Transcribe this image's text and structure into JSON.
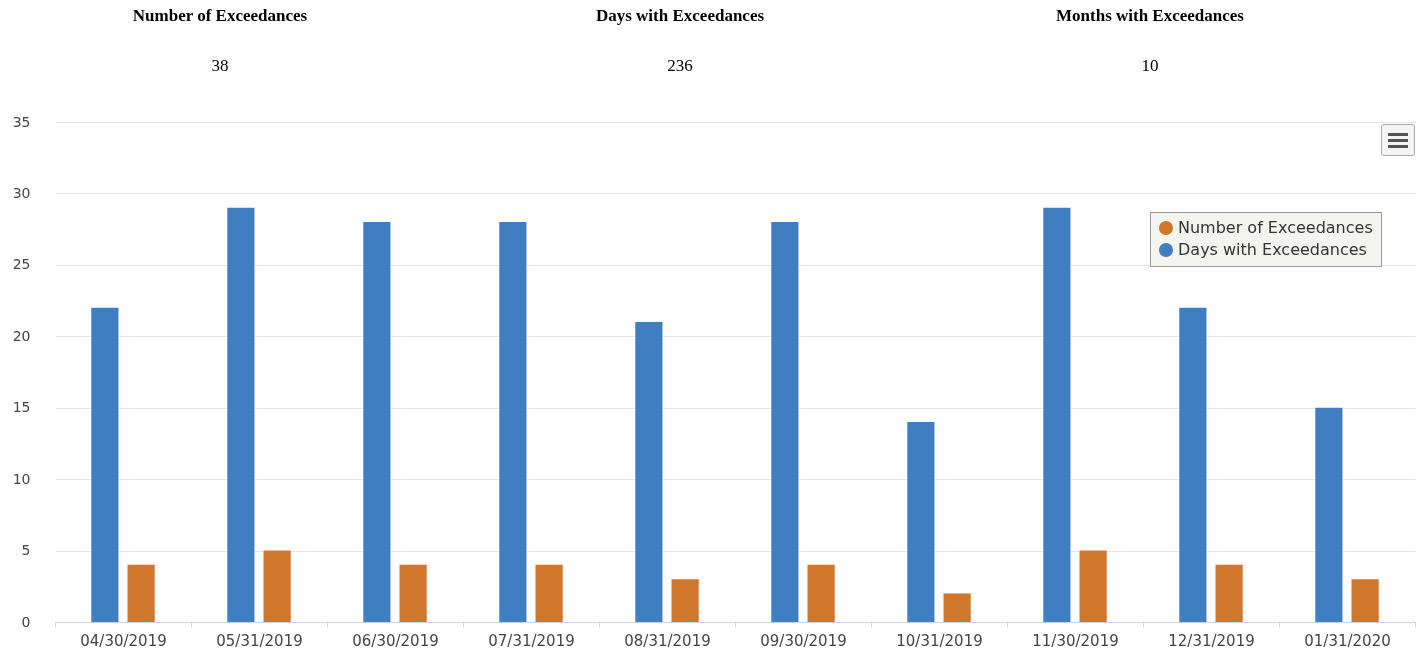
{
  "chart_data": {
    "type": "bar",
    "annotations": [
      "Number of Exceedances",
      "38",
      "Days with Exceedances",
      "236",
      "Months with Exceedances",
      "10"
    ],
    "categories": [
      "04/30/2019",
      "05/31/2019",
      "06/30/2019",
      "07/31/2019",
      "08/31/2019",
      "09/30/2019",
      "10/31/2019",
      "11/30/2019",
      "12/31/2019",
      "01/31/2020"
    ],
    "series": [
      {
        "name": "Number of Exceedances",
        "color": "#d0772c",
        "values": [
          4,
          5,
          4,
          4,
          3,
          4,
          2,
          5,
          4,
          3
        ]
      },
      {
        "name": "Days with Exceedances",
        "color": "#3f7fc1",
        "values": [
          22,
          29,
          28,
          28,
          21,
          28,
          14,
          29,
          22,
          15
        ]
      }
    ],
    "ylim": [
      0,
      35
    ],
    "yticks": [
      0,
      5,
      10,
      15,
      20,
      25,
      30,
      35
    ],
    "grid": "y",
    "legend": "top right"
  }
}
